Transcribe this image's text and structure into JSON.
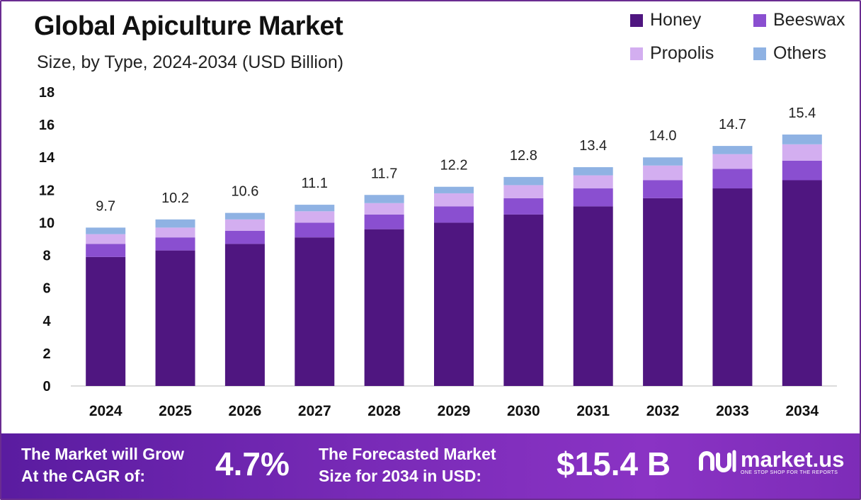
{
  "header": {
    "title": "Global Apiculture Market",
    "subtitle": "Size, by Type, 2024-2034 (USD Billion)"
  },
  "legend": [
    {
      "label": "Honey",
      "color": "#4f1680"
    },
    {
      "label": "Beeswax",
      "color": "#8a4fd0"
    },
    {
      "label": "Propolis",
      "color": "#d3aef0"
    },
    {
      "label": "Others",
      "color": "#8fb2e3"
    }
  ],
  "chart_data": {
    "type": "bar",
    "stacked": true,
    "categories": [
      "2024",
      "2025",
      "2026",
      "2027",
      "2028",
      "2029",
      "2030",
      "2031",
      "2032",
      "2033",
      "2034"
    ],
    "series": [
      {
        "name": "Honey",
        "color": "#4f1680",
        "values": [
          7.9,
          8.3,
          8.7,
          9.1,
          9.6,
          10.0,
          10.5,
          11.0,
          11.5,
          12.1,
          12.6
        ]
      },
      {
        "name": "Beeswax",
        "color": "#8a4fd0",
        "values": [
          0.8,
          0.8,
          0.8,
          0.9,
          0.9,
          1.0,
          1.0,
          1.1,
          1.1,
          1.2,
          1.2
        ]
      },
      {
        "name": "Propolis",
        "color": "#d3aef0",
        "values": [
          0.6,
          0.6,
          0.7,
          0.7,
          0.7,
          0.8,
          0.8,
          0.8,
          0.9,
          0.9,
          1.0
        ]
      },
      {
        "name": "Others",
        "color": "#8fb2e3",
        "values": [
          0.4,
          0.5,
          0.4,
          0.4,
          0.5,
          0.4,
          0.5,
          0.5,
          0.5,
          0.5,
          0.6
        ]
      }
    ],
    "totals": [
      "9.7",
      "10.2",
      "10.6",
      "11.1",
      "11.7",
      "12.2",
      "12.8",
      "13.4",
      "14.0",
      "14.7",
      "15.4"
    ],
    "yticks": [
      "0",
      "2",
      "4",
      "6",
      "8",
      "10",
      "12",
      "14",
      "16",
      "18"
    ],
    "ylim": [
      0,
      18
    ],
    "grid": false,
    "legend_position": "top-right"
  },
  "footer": {
    "cagr_label": "The Market will Grow\nAt the CAGR of:",
    "cagr_value": "4.7%",
    "forecast_label": "The Forecasted Market\nSize for 2034 in USD:",
    "forecast_value": "$15.4 B",
    "brand_name": "market.us",
    "brand_tagline": "ONE STOP SHOP FOR THE REPORTS"
  }
}
